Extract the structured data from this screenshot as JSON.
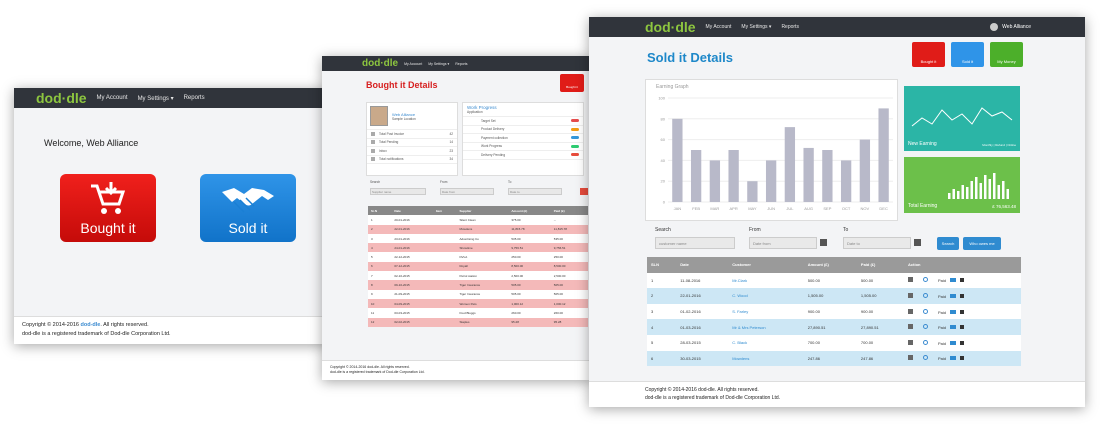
{
  "brand": {
    "logo": "dod·dle",
    "accent": "#8dc63f"
  },
  "nav": {
    "account": "My Account",
    "settings": "My Settings ▾",
    "reports": "Reports"
  },
  "home": {
    "welcome": "Welcome, Web Alliance",
    "bought_label": "Bought it",
    "sold_label": "Sold it",
    "footer_line1_pre": "Copyright © 2014-2016 ",
    "footer_brand": "dod-dle",
    "footer_line1_post": ". All rights reserved.",
    "footer_line2": "dod-dle is a registered trademark of Dod-dle Corporation Ltd."
  },
  "bought": {
    "title": "Bought it Details",
    "mini_label": "Bought it",
    "profile": {
      "name": "Web Alliance",
      "sub": "Sample Location"
    },
    "progress_title": "Work Progress",
    "progress_sub": "Application",
    "stats": [
      {
        "label": "Total Post Invoice",
        "value": "42"
      },
      {
        "label": "Total Pending",
        "value": "14"
      },
      {
        "label": "Inbox",
        "value": "23"
      },
      {
        "label": "Total notifications",
        "value": "34"
      }
    ],
    "progress": [
      {
        "label": "Target Set",
        "color": "#e64c4c"
      },
      {
        "label": "Product Delivery",
        "color": "#f39c12"
      },
      {
        "label": "Payment collection",
        "color": "#3498db"
      },
      {
        "label": "Work Progress",
        "color": "#2ecc71"
      },
      {
        "label": "Delivery Pending",
        "color": "#e74c3c"
      }
    ],
    "search": "Search",
    "from": "From",
    "to": "To",
    "supplier_ph": "Supplier name",
    "from_ph": "Date from",
    "to_ph": "Date to",
    "headers": [
      "Sr.N",
      "Date",
      "Item",
      "Supplier",
      "Amount (£)",
      "Paid (£)"
    ],
    "rows": [
      [
        "1",
        "20-01-2016",
        "",
        "Silent Clean",
        "375.00",
        "--"
      ],
      [
        "2",
        "22-01-2016",
        "",
        "Mowdens",
        "11,815.78",
        "11,815.78"
      ],
      [
        "3",
        "23-01-2016",
        "",
        "Advertising Co",
        "535.00",
        "535.00"
      ],
      [
        "4",
        "24-01-2016",
        "",
        "Showtime",
        "9,756.51",
        "9,756.51"
      ],
      [
        "5",
        "22-12-2015",
        "",
        "DVLA",
        "250.00",
        "250.00"
      ],
      [
        "6",
        "07-12-2015",
        "",
        "Royall",
        "8,500.00",
        "8,500.00"
      ],
      [
        "7",
        "02-10-2015",
        "",
        "Petrol station",
        "2,500.00",
        "2,500.00"
      ],
      [
        "8",
        "09-10-2015",
        "",
        "Tiger Insurance",
        "505.00",
        "505.00"
      ],
      [
        "9",
        "21-09-2015",
        "",
        "Tiger Insurance",
        "505.00",
        "505.00"
      ],
      [
        "10",
        "04-09-2015",
        "",
        "Women Pets",
        "1,000.12",
        "1,000.12"
      ],
      [
        "11",
        "03-03-2015",
        "",
        "Fred Bloggs",
        "260.00",
        "260.00"
      ],
      [
        "12",
        "02-02-2015",
        "",
        "Staples",
        "95.28",
        "95.28"
      ]
    ],
    "footer1": "Copyright © 2014-2016 dod-dle. All rights reserved.",
    "footer2": "dod-dle is a registered trademark of Dod-dle Corporation Ltd."
  },
  "sold": {
    "title": "Sold it Details",
    "user": "Web Alliance",
    "btn_bought": "Bought it",
    "btn_sold": "Sold it",
    "btn_money": "My Money",
    "graph_title": "Earning Graph",
    "stat1": {
      "title": "New Earning",
      "label1": "Monthly",
      "label2": "Refund",
      "label3": "Online"
    },
    "stat2": {
      "title": "Total Earning",
      "value": "£ 76,563.48"
    },
    "search": "Search",
    "from": "From",
    "to": "To",
    "cust_ph": "customer name",
    "from_ph": "Date from",
    "to_ph": "Date to",
    "search_btn": "Search",
    "who_btn": "Who owes me",
    "headers": [
      "SLN",
      "Date",
      "Customer",
      "Amount (£)",
      "Paid (£)",
      "Action"
    ],
    "rows": [
      [
        "1",
        "11-08-2016",
        "Mr.Clark",
        "500.00",
        "500.00",
        "Paid"
      ],
      [
        "2",
        "22-01-2016",
        "C. Wood",
        "1,505.00",
        "1,505.00",
        "Paid"
      ],
      [
        "3",
        "01-02-2016",
        "S. Farley",
        "900.00",
        "900.00",
        "Paid"
      ],
      [
        "4",
        "01-03-2016",
        "Mr & Mrs Peterson",
        "27,890.51",
        "27,890.51",
        "Paid"
      ],
      [
        "5",
        "28-03-2015",
        "C. Black",
        "700.00",
        "700.00",
        "Paid"
      ],
      [
        "6",
        "30-03-2015",
        "Mowdens",
        "247.86",
        "247.86",
        "Paid"
      ]
    ],
    "footer1": "Copyright © 2014-2016 dod-dle. All rights reserved.",
    "footer2": "dod-dle is a registered trademark of Dod-dle Corporation Ltd."
  },
  "chart_data": {
    "type": "bar",
    "title": "Earning Graph",
    "categories": [
      "JAN",
      "FEB",
      "MAR",
      "APR",
      "MAY",
      "JUN",
      "JUL",
      "AUG",
      "SEP",
      "OCT",
      "NOV",
      "DEC"
    ],
    "values": [
      80,
      50,
      40,
      50,
      20,
      40,
      72,
      52,
      50,
      40,
      60,
      90
    ],
    "ylim": [
      0,
      100
    ],
    "yticks": [
      0,
      20,
      40,
      60,
      80,
      100
    ],
    "color": "#b8b9c9"
  }
}
